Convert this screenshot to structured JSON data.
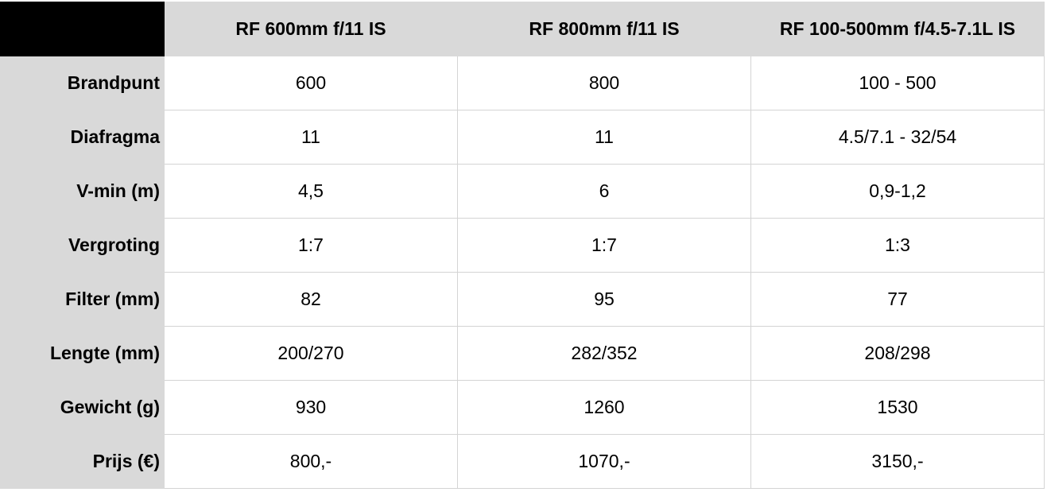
{
  "columns": [
    "RF 600mm f/11 IS",
    "RF 800mm f/11 IS",
    "RF 100-500mm f/4.5-7.1L IS"
  ],
  "rows": [
    {
      "label": "Brandpunt",
      "values": [
        "600",
        "800",
        "100 - 500"
      ]
    },
    {
      "label": "Diafragma",
      "values": [
        "11",
        "11",
        "4.5/7.1 - 32/54"
      ]
    },
    {
      "label": "V-min (m)",
      "values": [
        "4,5",
        "6",
        "0,9-1,2"
      ]
    },
    {
      "label": "Vergroting",
      "values": [
        "1:7",
        "1:7",
        "1:3"
      ]
    },
    {
      "label": "Filter (mm)",
      "values": [
        "82",
        "95",
        "77"
      ]
    },
    {
      "label": "Lengte (mm)",
      "values": [
        "200/270",
        "282/352",
        "208/298"
      ]
    },
    {
      "label": "Gewicht (g)",
      "values": [
        "930",
        "1260",
        "1530"
      ]
    },
    {
      "label": "Prijs (€)",
      "values": [
        "800,-",
        "1070,-",
        "3150,-"
      ]
    }
  ],
  "colors": {
    "header_bg": "#d9d9d9",
    "corner_bg": "#000000",
    "grid": "#d4d4d4"
  }
}
